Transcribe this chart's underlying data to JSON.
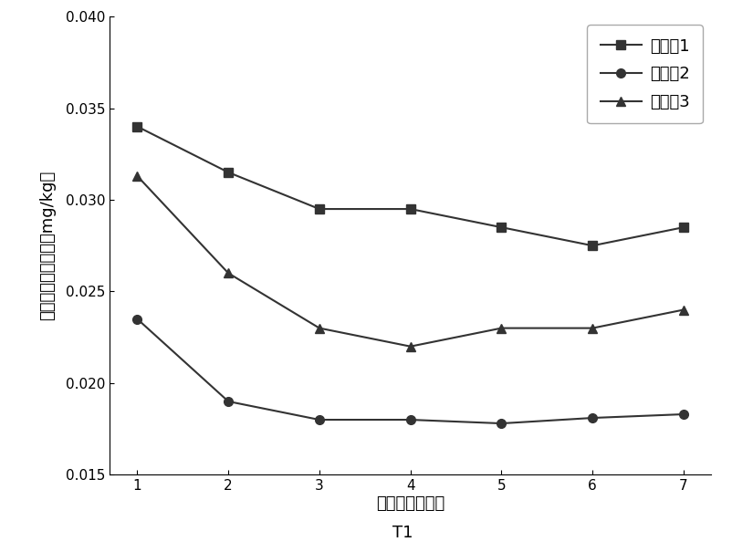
{
  "x": [
    1,
    2,
    3,
    4,
    5,
    6,
    7
  ],
  "series1": [
    0.034,
    0.0315,
    0.0295,
    0.0295,
    0.0285,
    0.0275,
    0.0285
  ],
  "series2": [
    0.0235,
    0.019,
    0.018,
    0.018,
    0.0178,
    0.0181,
    0.0183
  ],
  "series3": [
    0.0313,
    0.026,
    0.023,
    0.022,
    0.023,
    0.023,
    0.024
  ],
  "series1_label": "调理剁1",
  "series2_label": "调理剁2",
  "series3_label": "调理剁3",
  "line_color": "#333333",
  "marker1": "s",
  "marker2": "o",
  "marker3": "^",
  "xlabel": "混合时间（天）",
  "xlabel2": "T1",
  "ylabel": "土壤镚有效态含量（mg/kg）",
  "ylim": [
    0.015,
    0.04
  ],
  "yticks": [
    0.015,
    0.02,
    0.025,
    0.03,
    0.035,
    0.04
  ],
  "xticks": [
    1,
    2,
    3,
    4,
    5,
    6,
    7
  ],
  "background_color": "#ffffff",
  "label_fontsize": 13,
  "tick_fontsize": 11,
  "legend_fontsize": 13,
  "linewidth": 1.5,
  "markersize": 7
}
